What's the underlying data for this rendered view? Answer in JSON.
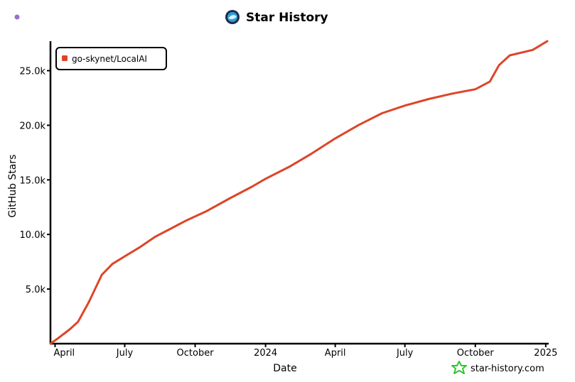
{
  "header": {
    "title": "Star History",
    "logo_icon": "star-history-logo-icon",
    "corner_dot_icon": "purple-dot-icon"
  },
  "colors": {
    "series": "#dd4528",
    "axis": "#000000",
    "dot": "#9b6fd0",
    "watermark": "#2fc72f"
  },
  "watermark": {
    "text": "star-history.com",
    "icon": "green-star-icon"
  },
  "chart_data": {
    "type": "line",
    "title": "Star History",
    "xlabel": "Date",
    "ylabel": "GitHub Stars",
    "ylim": [
      0,
      27700
    ],
    "xlim": [
      "2023-03-26",
      "2025-01-03"
    ],
    "grid": false,
    "legend": "top-left",
    "x_ticks": [
      {
        "label": "April",
        "date": "2023-04-01"
      },
      {
        "label": "July",
        "date": "2023-07-01"
      },
      {
        "label": "October",
        "date": "2023-10-01"
      },
      {
        "label": "2024",
        "date": "2024-01-01"
      },
      {
        "label": "April",
        "date": "2024-04-01"
      },
      {
        "label": "July",
        "date": "2024-07-01"
      },
      {
        "label": "October",
        "date": "2024-10-01"
      },
      {
        "label": "2025",
        "date": "2025-01-01"
      }
    ],
    "y_ticks": [
      {
        "label": "5.0k",
        "value": 5000
      },
      {
        "label": "10.0k",
        "value": 10000
      },
      {
        "label": "15.0k",
        "value": 15000
      },
      {
        "label": "20.0k",
        "value": 20000
      },
      {
        "label": "25.0k",
        "value": 25000
      }
    ],
    "series": [
      {
        "name": "go-skynet/LocalAI",
        "color": "#dd4528",
        "points": [
          [
            "2023-03-26",
            0
          ],
          [
            "2023-04-05",
            500
          ],
          [
            "2023-04-20",
            1300
          ],
          [
            "2023-05-01",
            2000
          ],
          [
            "2023-05-15",
            3800
          ],
          [
            "2023-06-01",
            6300
          ],
          [
            "2023-06-15",
            7300
          ],
          [
            "2023-07-01",
            8000
          ],
          [
            "2023-07-20",
            8800
          ],
          [
            "2023-08-10",
            9800
          ],
          [
            "2023-09-01",
            10600
          ],
          [
            "2023-09-20",
            11300
          ],
          [
            "2023-10-15",
            12100
          ],
          [
            "2023-11-15",
            13300
          ],
          [
            "2023-12-15",
            14400
          ],
          [
            "2024-01-01",
            15100
          ],
          [
            "2024-02-01",
            16200
          ],
          [
            "2024-03-01",
            17400
          ],
          [
            "2024-04-01",
            18800
          ],
          [
            "2024-05-01",
            20000
          ],
          [
            "2024-06-01",
            21100
          ],
          [
            "2024-07-01",
            21800
          ],
          [
            "2024-08-01",
            22400
          ],
          [
            "2024-09-01",
            22900
          ],
          [
            "2024-10-01",
            23300
          ],
          [
            "2024-10-20",
            24000
          ],
          [
            "2024-11-01",
            25500
          ],
          [
            "2024-11-15",
            26400
          ],
          [
            "2024-12-15",
            26900
          ],
          [
            "2025-01-03",
            27700
          ]
        ]
      }
    ]
  }
}
